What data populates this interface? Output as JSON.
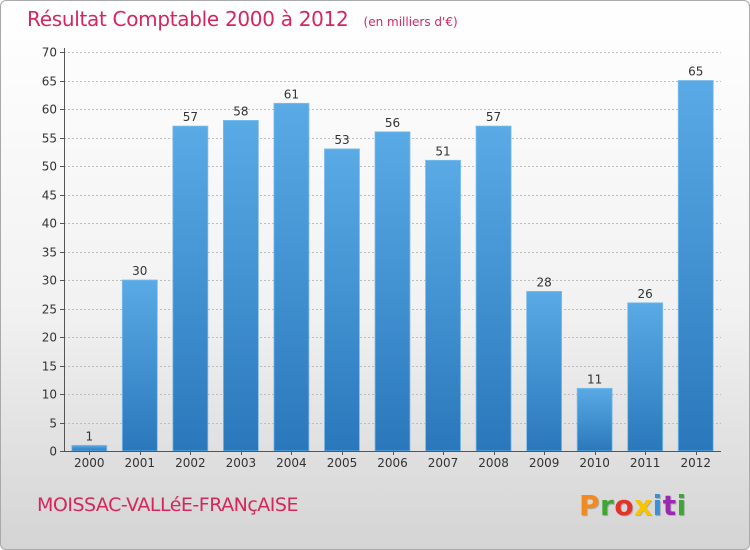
{
  "header": {
    "title": "Résultat Comptable 2000 à 2012",
    "unit": "(en milliers d'€)"
  },
  "footer": {
    "commune": "MOISSAC-VALLéE-FRANçAISE",
    "logo_letters": [
      "P",
      "r",
      "o",
      "x",
      "i",
      "t",
      "i"
    ],
    "logo_colors": [
      "#f28a1e",
      "#3fa535",
      "#e2332a",
      "#f7c400",
      "#3a8fd6",
      "#9c27b0",
      "#3fa535"
    ]
  },
  "colors": {
    "bar_light": "#5aaae6",
    "bar_dark": "#2a78bb",
    "grid": "#bdbdbd",
    "axis": "#555555"
  },
  "chart_data": {
    "type": "bar",
    "title": "Résultat Comptable 2000 à 2012",
    "xlabel": "",
    "ylabel": "",
    "ylim": [
      0,
      70
    ],
    "yticks": [
      0,
      5,
      10,
      15,
      20,
      25,
      30,
      35,
      40,
      45,
      50,
      55,
      60,
      65,
      70
    ],
    "grid": true,
    "categories": [
      "2000",
      "2001",
      "2002",
      "2003",
      "2004",
      "2005",
      "2006",
      "2007",
      "2008",
      "2009",
      "2010",
      "2011",
      "2012"
    ],
    "values": [
      1,
      30,
      57,
      58,
      61,
      53,
      56,
      51,
      57,
      28,
      11,
      26,
      65
    ]
  }
}
